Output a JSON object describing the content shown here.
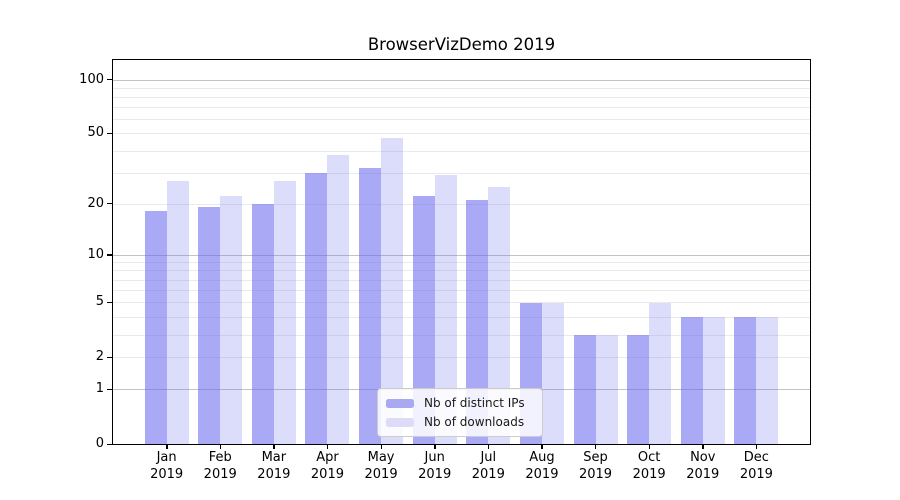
{
  "chart_data": {
    "type": "bar",
    "title": "BrowserVizDemo 2019",
    "categories": [
      "Jan 2019",
      "Feb 2019",
      "Mar 2019",
      "Apr 2019",
      "May 2019",
      "Jun 2019",
      "Jul 2019",
      "Aug 2019",
      "Sep 2019",
      "Oct 2019",
      "Nov 2019",
      "Dec 2019"
    ],
    "series": [
      {
        "name": "Nb of distinct IPs",
        "values": [
          18,
          19,
          20,
          30,
          32,
          22,
          21,
          5,
          3,
          3,
          4,
          4
        ]
      },
      {
        "name": "Nb of downloads",
        "values": [
          27,
          22,
          27,
          38,
          47,
          29,
          25,
          5,
          3,
          5,
          4,
          4
        ]
      }
    ],
    "xlabel": "",
    "ylabel": "",
    "yaxis": {
      "scale": "log1p",
      "tick_values": [
        0,
        1,
        2,
        5,
        10,
        20,
        50,
        100
      ],
      "tick_labels": [
        "0",
        "1",
        "2",
        "5",
        "10",
        "20",
        "50",
        "100"
      ],
      "major_gridlines": [
        1,
        10,
        100
      ],
      "minor_gridlines": [
        2,
        3,
        4,
        5,
        6,
        7,
        8,
        9,
        20,
        30,
        40,
        50,
        60,
        70,
        80,
        90
      ],
      "range_top_value": 128
    },
    "legend": {
      "position": "lower center",
      "entries": [
        "Nb of distinct IPs",
        "Nb of downloads"
      ]
    },
    "grid": true
  },
  "colors": {
    "bar_ips_base": "#6666ee",
    "bar_ips_alpha": 0.56,
    "bar_downloads_base": "#6666ee",
    "bar_downloads_alpha": 0.23,
    "legend_swatch_ips": "#a9a9f3",
    "legend_swatch_downloads": "#dcdcf9",
    "gridline_major": "#c3c3c3",
    "gridline_minor": "#eaeaea",
    "axis_color": "#000000",
    "legend_border": "#cccccc",
    "background": "#ffffff"
  }
}
